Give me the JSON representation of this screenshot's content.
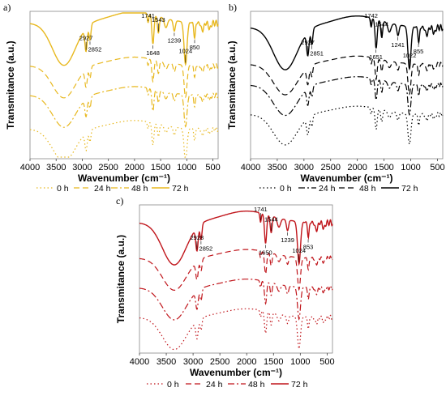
{
  "chart_data": [
    {
      "panel_label": "a)",
      "type": "line",
      "color": "#E8B81E",
      "xlabel": "Wavenumber (cm⁻¹)",
      "ylabel": "Transmitance (a.u.)",
      "xlim": [
        4000,
        400
      ],
      "x_ticks": [
        4000,
        3500,
        3000,
        2500,
        2000,
        1500,
        1000,
        500
      ],
      "y_ticks": [],
      "legend": [
        "0 h",
        "24 h",
        "48 h",
        "72 h"
      ],
      "legend_placement": "bottom",
      "series": [
        {
          "name": "0 h",
          "style": "dotted"
        },
        {
          "name": "24 h",
          "style": "dashed"
        },
        {
          "name": "48 h",
          "style": "dash-dot"
        },
        {
          "name": "72 h",
          "style": "solid"
        }
      ],
      "peak_labels": [
        "2927",
        "2852",
        "1741",
        "1648",
        "1543",
        "1239",
        "1024",
        "850"
      ]
    },
    {
      "panel_label": "b)",
      "type": "line",
      "color": "#000000",
      "xlabel": "Wavenumber (cm⁻¹)",
      "ylabel": "Transmitance (a.u.)",
      "xlim": [
        4000,
        400
      ],
      "x_ticks": [
        4000,
        3500,
        3000,
        2500,
        2000,
        1500,
        1000,
        500
      ],
      "y_ticks": [],
      "legend": [
        "0 h",
        "24 h",
        "48 h",
        "72 h"
      ],
      "legend_placement": "bottom",
      "series": [
        {
          "name": "0 h",
          "style": "dotted"
        },
        {
          "name": "24 h",
          "style": "dash-dot"
        },
        {
          "name": "48 h",
          "style": "dashed"
        },
        {
          "name": "72 h",
          "style": "solid"
        }
      ],
      "peak_labels": [
        "2927",
        "2851",
        "1742",
        "1651",
        "1544",
        "1241",
        "1022",
        "855"
      ]
    },
    {
      "panel_label": "c)",
      "type": "line",
      "color": "#C0151B",
      "xlabel": "Wavenumber (cm⁻¹)",
      "ylabel": "Transmitance (a.u.)",
      "xlim": [
        4000,
        400
      ],
      "x_ticks": [
        4000,
        3500,
        3000,
        2500,
        2000,
        1500,
        1000,
        500
      ],
      "y_ticks": [],
      "legend": [
        "0 h",
        "24 h",
        "48 h",
        "72 h"
      ],
      "legend_placement": "bottom",
      "series": [
        {
          "name": "0 h",
          "style": "dotted"
        },
        {
          "name": "24 h",
          "style": "dashed"
        },
        {
          "name": "48 h",
          "style": "dash-dot"
        },
        {
          "name": "72 h",
          "style": "solid"
        }
      ],
      "peak_labels": [
        "2928",
        "2852",
        "1741",
        "1650",
        "1544",
        "1239",
        "1024",
        "853"
      ]
    }
  ]
}
